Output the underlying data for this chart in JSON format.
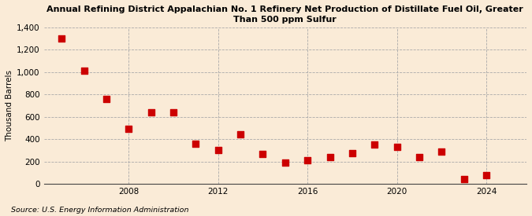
{
  "title": "Annual Refining District Appalachian No. 1 Refinery Net Production of Distillate Fuel Oil, Greater\nThan 500 ppm Sulfur",
  "ylabel": "Thousand Barrels",
  "source": "Source: U.S. Energy Information Administration",
  "background_color": "#faebd7",
  "plot_bg_color": "#faebd7",
  "marker_color": "#cc0000",
  "years": [
    2005,
    2006,
    2007,
    2008,
    2009,
    2010,
    2011,
    2012,
    2013,
    2014,
    2015,
    2016,
    2017,
    2018,
    2019,
    2020,
    2021,
    2022,
    2023,
    2024
  ],
  "values": [
    1300,
    1010,
    760,
    490,
    640,
    640,
    360,
    300,
    440,
    270,
    190,
    210,
    240,
    275,
    350,
    330,
    240,
    290,
    45,
    75
  ],
  "ylim": [
    0,
    1400
  ],
  "yticks": [
    0,
    200,
    400,
    600,
    800,
    1000,
    1200,
    1400
  ],
  "ytick_labels": [
    "0",
    "200",
    "400",
    "600",
    "800",
    "1,000",
    "1,200",
    "1,400"
  ],
  "xticks": [
    2008,
    2012,
    2016,
    2020,
    2024
  ],
  "xlim": [
    2004.2,
    2025.8
  ],
  "grid_color": "#aaaaaa",
  "title_fontsize": 8.0,
  "axis_fontsize": 7.5,
  "source_fontsize": 6.8,
  "marker_size": 28
}
